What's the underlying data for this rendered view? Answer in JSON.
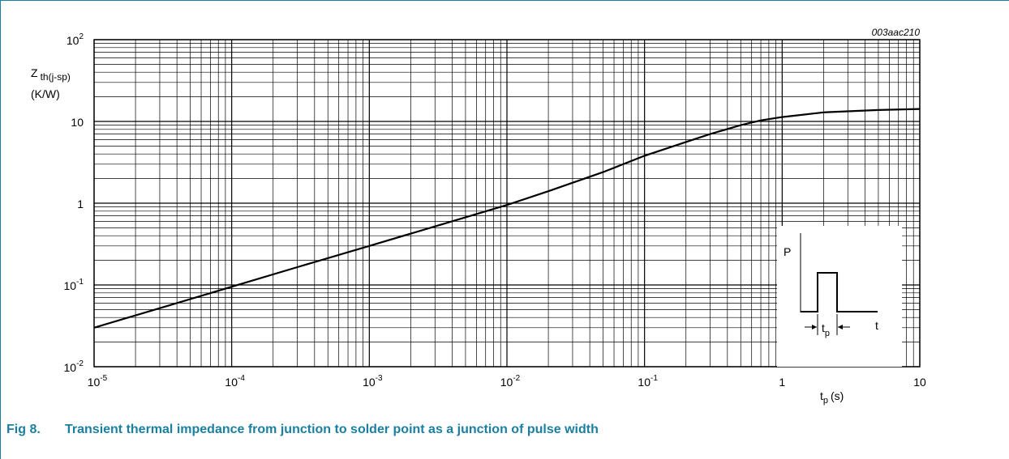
{
  "chart_data": {
    "type": "line",
    "title": "",
    "code": "003aac210",
    "ylabel": {
      "main": "Z",
      "sub": "th(j-sp)",
      "unit": "(K/W)"
    },
    "xlabel": {
      "main": "t",
      "sub": "p",
      "unit": "(s)"
    },
    "x_scale": "log",
    "y_scale": "log",
    "xlim": [
      1e-05,
      10
    ],
    "ylim": [
      0.01,
      100
    ],
    "grid": true,
    "x_ticks": [
      {
        "value": 1e-05,
        "base": "10",
        "exp": "-5"
      },
      {
        "value": 0.0001,
        "base": "10",
        "exp": "-4"
      },
      {
        "value": 0.001,
        "base": "10",
        "exp": "-3"
      },
      {
        "value": 0.01,
        "base": "10",
        "exp": "-2"
      },
      {
        "value": 0.1,
        "base": "10",
        "exp": "-1"
      },
      {
        "value": 1,
        "base": "1",
        "exp": ""
      },
      {
        "value": 10,
        "base": "10",
        "exp": ""
      }
    ],
    "y_ticks": [
      {
        "value": 0.01,
        "base": "10",
        "exp": "-2"
      },
      {
        "value": 0.1,
        "base": "10",
        "exp": "-1"
      },
      {
        "value": 1,
        "base": "1",
        "exp": ""
      },
      {
        "value": 10,
        "base": "10",
        "exp": ""
      },
      {
        "value": 100,
        "base": "10",
        "exp": "2"
      }
    ],
    "series": [
      {
        "color": "#000000",
        "points": [
          [
            1e-05,
            0.03
          ],
          [
            3e-05,
            0.052
          ],
          [
            0.0001,
            0.095
          ],
          [
            0.0003,
            0.165
          ],
          [
            0.001,
            0.3
          ],
          [
            0.003,
            0.52
          ],
          [
            0.01,
            0.95
          ],
          [
            0.02,
            1.4
          ],
          [
            0.05,
            2.4
          ],
          [
            0.1,
            3.8
          ],
          [
            0.2,
            5.6
          ],
          [
            0.3,
            7.0
          ],
          [
            0.5,
            9.0
          ],
          [
            0.7,
            10.3
          ],
          [
            1,
            11.3
          ],
          [
            2,
            12.9
          ],
          [
            5,
            13.8
          ],
          [
            10,
            14.2
          ]
        ]
      }
    ],
    "inset": {
      "p_label": "P",
      "t_label": "t",
      "tp_main": "t",
      "tp_sub": "p"
    }
  },
  "caption": {
    "number": "Fig 8.",
    "text": "Transient thermal impedance from junction to solder point as a junction of pulse width"
  }
}
